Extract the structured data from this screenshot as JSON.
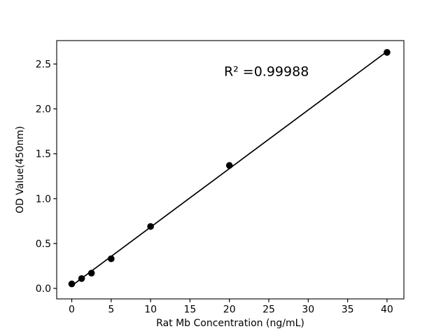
{
  "figure": {
    "background": "#ffffff",
    "foreground": "#000000"
  },
  "chart_data": {
    "type": "scatter",
    "title": "",
    "xlabel": "Rat Mb Concentration (ng/mL)",
    "ylabel": "OD Value(450nm)",
    "x": [
      0,
      1.25,
      2.5,
      5,
      10,
      20,
      40
    ],
    "y": [
      0.05,
      0.11,
      0.17,
      0.33,
      0.69,
      1.37,
      2.63
    ],
    "fit_line": {
      "x": [
        0,
        40
      ],
      "y": [
        0.03,
        2.64
      ]
    },
    "annotation": {
      "text": "R² =0.99988",
      "x": 24.7,
      "y": 2.42
    },
    "x_ticks": {
      "values": [
        0,
        5,
        10,
        15,
        20,
        25,
        30,
        35,
        40
      ],
      "labels": [
        "0",
        "5",
        "10",
        "15",
        "20",
        "25",
        "30",
        "35",
        "40"
      ]
    },
    "y_ticks": {
      "values": [
        0.0,
        0.5,
        1.0,
        1.5,
        2.0,
        2.5
      ],
      "labels": [
        "0.0",
        "0.5",
        "1.0",
        "1.5",
        "2.0",
        "2.5"
      ]
    },
    "xlim": [
      -1.91,
      42.14
    ],
    "ylim": [
      -0.117,
      2.761
    ],
    "grid": false,
    "legend": null,
    "line_color": "#000000",
    "marker_color": "#000000",
    "marker_style": "circle"
  }
}
